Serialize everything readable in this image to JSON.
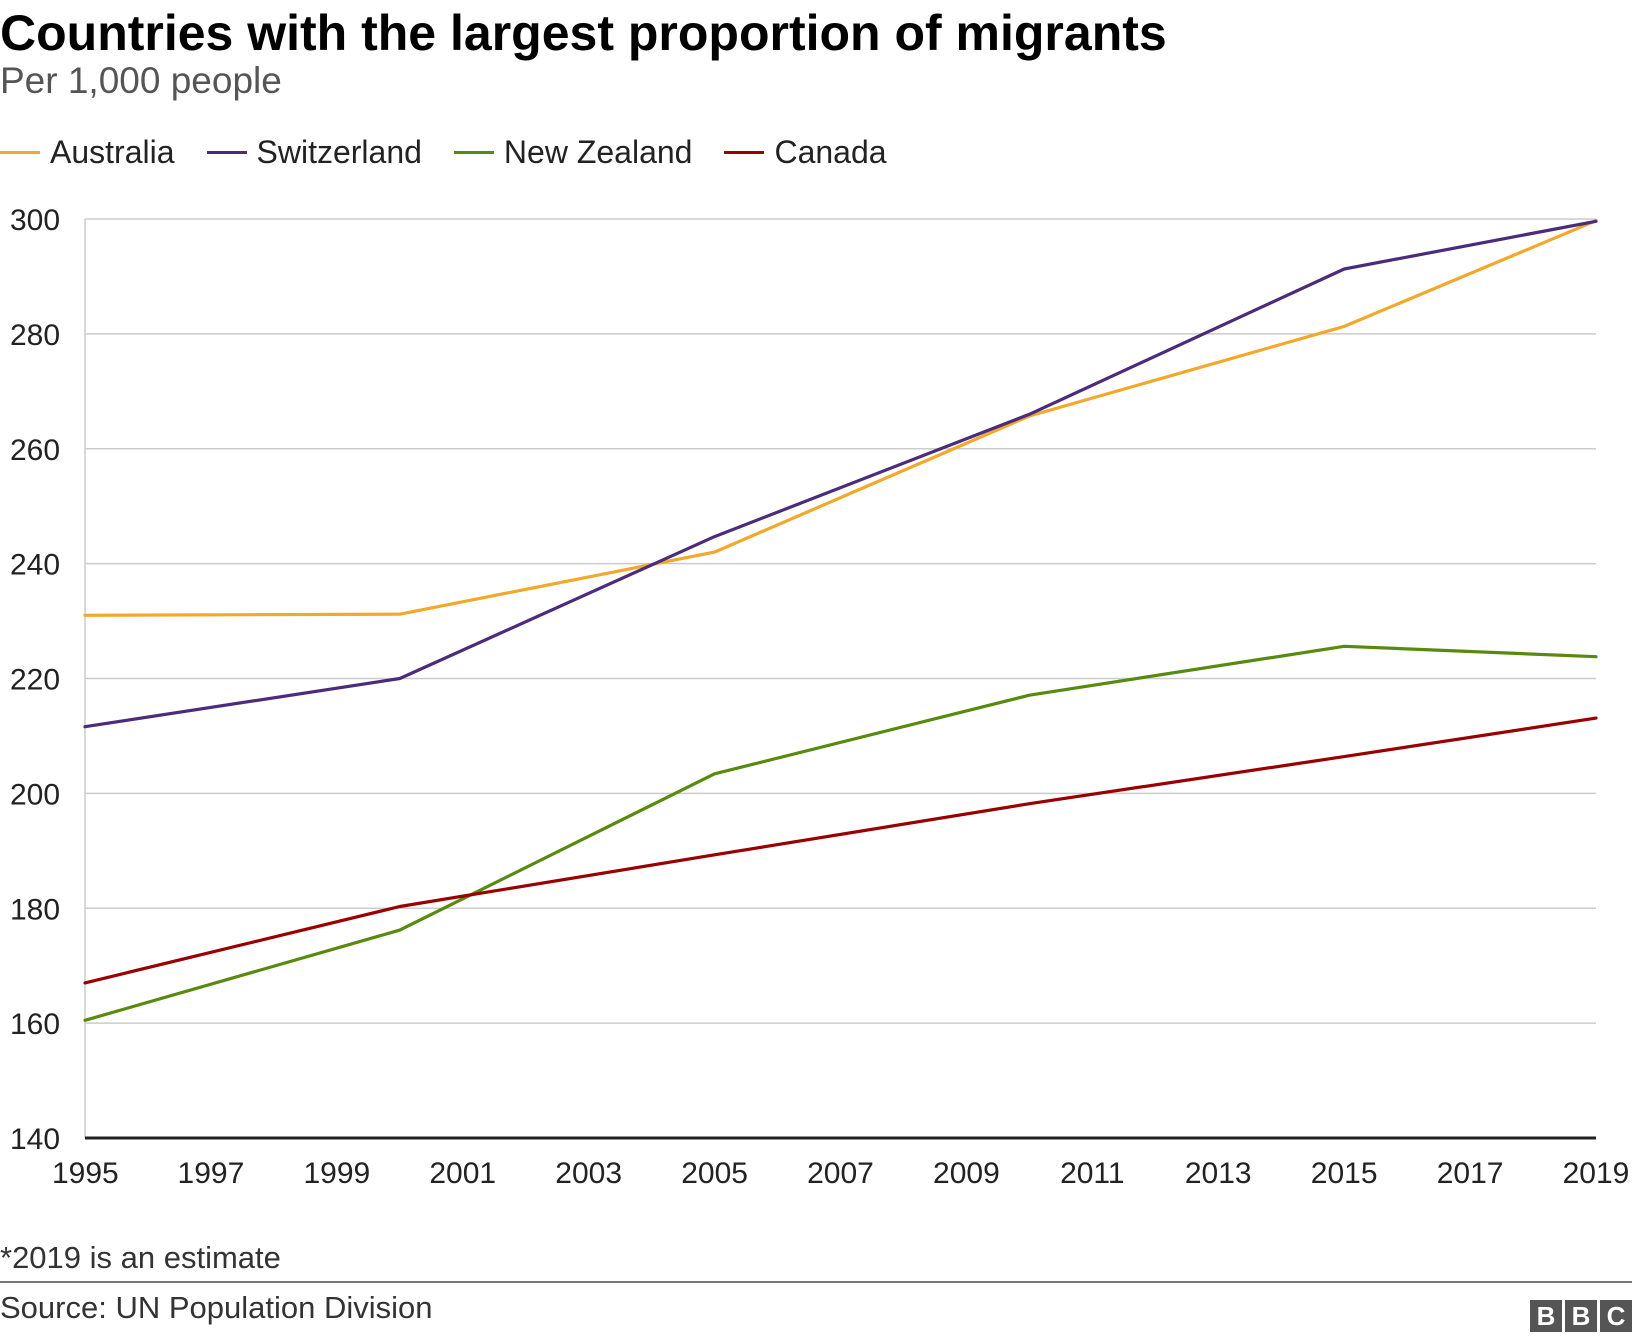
{
  "title": "Countries with the largest proportion of migrants",
  "subtitle": "Per 1,000 people",
  "legend": [
    {
      "label": "Australia",
      "color": "#f2a82b"
    },
    {
      "label": "Switzerland",
      "color": "#4b2c7a"
    },
    {
      "label": "New Zealand",
      "color": "#588a10"
    },
    {
      "label": "Canada",
      "color": "#990000"
    }
  ],
  "note": "*2019 is an estimate",
  "source": "Source: UN Population Division",
  "logo": [
    "B",
    "B",
    "C"
  ],
  "chart_data": {
    "type": "line",
    "title": "Countries with the largest proportion of migrants",
    "subtitle": "Per 1,000 people",
    "xlabel": "",
    "ylabel": "",
    "xlim": [
      1995,
      2019
    ],
    "ylim": [
      140,
      300
    ],
    "x_ticks": [
      1995,
      1997,
      1999,
      2001,
      2003,
      2005,
      2007,
      2009,
      2011,
      2013,
      2015,
      2017,
      2019
    ],
    "y_ticks": [
      140,
      160,
      180,
      200,
      220,
      240,
      260,
      280,
      300
    ],
    "grid": true,
    "series": [
      {
        "name": "Australia",
        "color": "#f2a82b",
        "points": [
          {
            "x": 1995,
            "y": 231
          },
          {
            "x": 2000,
            "y": 231.2
          },
          {
            "x": 2005,
            "y": 242
          },
          {
            "x": 2010,
            "y": 265.7
          },
          {
            "x": 2015,
            "y": 281.3
          },
          {
            "x": 2019,
            "y": 299.7
          }
        ]
      },
      {
        "name": "Switzerland",
        "color": "#4b2c7a",
        "points": [
          {
            "x": 1995,
            "y": 211.6
          },
          {
            "x": 2000,
            "y": 220
          },
          {
            "x": 2005,
            "y": 244.7
          },
          {
            "x": 2010,
            "y": 266
          },
          {
            "x": 2015,
            "y": 291.3
          },
          {
            "x": 2019,
            "y": 299.6
          }
        ]
      },
      {
        "name": "New Zealand",
        "color": "#588a10",
        "points": [
          {
            "x": 1995,
            "y": 160.5
          },
          {
            "x": 2000,
            "y": 176.2
          },
          {
            "x": 2005,
            "y": 203.4
          },
          {
            "x": 2010,
            "y": 217.1
          },
          {
            "x": 2015,
            "y": 225.6
          },
          {
            "x": 2019,
            "y": 223.8
          }
        ]
      },
      {
        "name": "Canada",
        "color": "#990000",
        "points": [
          {
            "x": 1995,
            "y": 167
          },
          {
            "x": 2000,
            "y": 180.3
          },
          {
            "x": 2005,
            "y": 189.3
          },
          {
            "x": 2010,
            "y": 198.2
          },
          {
            "x": 2015,
            "y": 206.4
          },
          {
            "x": 2019,
            "y": 213.1
          }
        ]
      }
    ]
  }
}
